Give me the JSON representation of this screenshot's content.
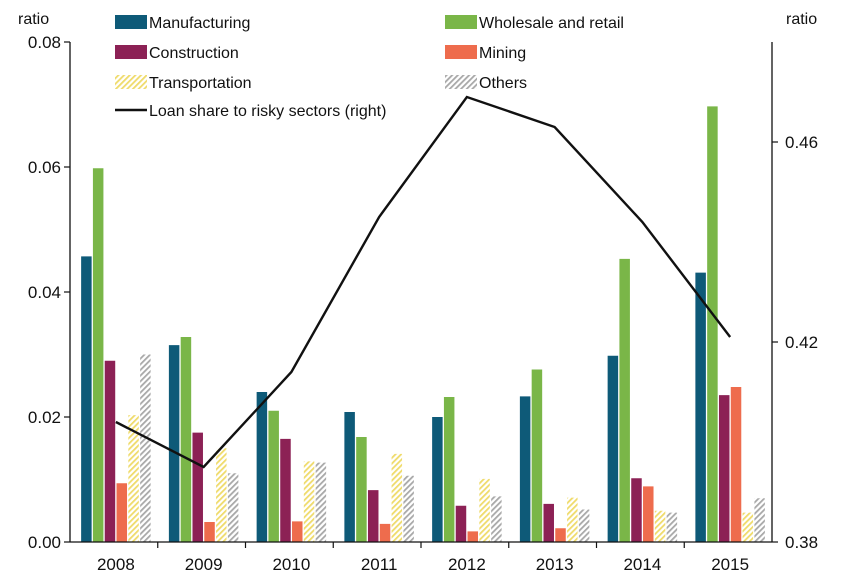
{
  "chart_data": {
    "type": "bar",
    "categories": [
      "2008",
      "2009",
      "2010",
      "2011",
      "2012",
      "2013",
      "2014",
      "2015"
    ],
    "y_left": {
      "label": "ratio",
      "ylim": [
        0,
        0.08
      ],
      "ticks": [
        "0.00",
        "0.02",
        "0.04",
        "0.06",
        "0.08"
      ]
    },
    "y_right": {
      "label": "ratio",
      "ylim": [
        0.38,
        0.48
      ],
      "ticks": [
        "0.38",
        "0.42",
        "0.46"
      ]
    },
    "legend_placement": "top",
    "grid": false,
    "series": [
      {
        "name": "Manufacturing",
        "axis": "left",
        "color": "#0e5a78",
        "pattern": "solid",
        "values": [
          0.0457,
          0.0315,
          0.024,
          0.0208,
          0.02,
          0.0233,
          0.0298,
          0.0431
        ]
      },
      {
        "name": "Wholesale and retail",
        "axis": "left",
        "color": "#7ab648",
        "pattern": "solid",
        "values": [
          0.0598,
          0.0328,
          0.021,
          0.0168,
          0.0232,
          0.0276,
          0.0453,
          0.0697
        ]
      },
      {
        "name": "Construction",
        "axis": "left",
        "color": "#8c2155",
        "pattern": "solid",
        "values": [
          0.029,
          0.0175,
          0.0165,
          0.0083,
          0.0058,
          0.0061,
          0.0102,
          0.0235
        ]
      },
      {
        "name": "Mining",
        "axis": "left",
        "color": "#ee6c4d",
        "pattern": "solid",
        "values": [
          0.0094,
          0.0032,
          0.0033,
          0.0029,
          0.0017,
          0.0022,
          0.0089,
          0.0248
        ]
      },
      {
        "name": "Transportation",
        "axis": "left",
        "color": "#efdb6a",
        "pattern": "hatched",
        "values": [
          0.0203,
          0.015,
          0.0129,
          0.0141,
          0.0101,
          0.0071,
          0.005,
          0.0047
        ]
      },
      {
        "name": "Others",
        "axis": "left",
        "color": "#a8a8a8",
        "pattern": "hatched",
        "values": [
          0.03,
          0.011,
          0.0127,
          0.0106,
          0.0073,
          0.0052,
          0.0047,
          0.007
        ]
      },
      {
        "name": "Loan share to risky sectors (right)",
        "axis": "right",
        "type": "line",
        "color": "#111111",
        "values": [
          0.404,
          0.395,
          0.414,
          0.445,
          0.469,
          0.463,
          0.444,
          0.421
        ]
      }
    ]
  }
}
